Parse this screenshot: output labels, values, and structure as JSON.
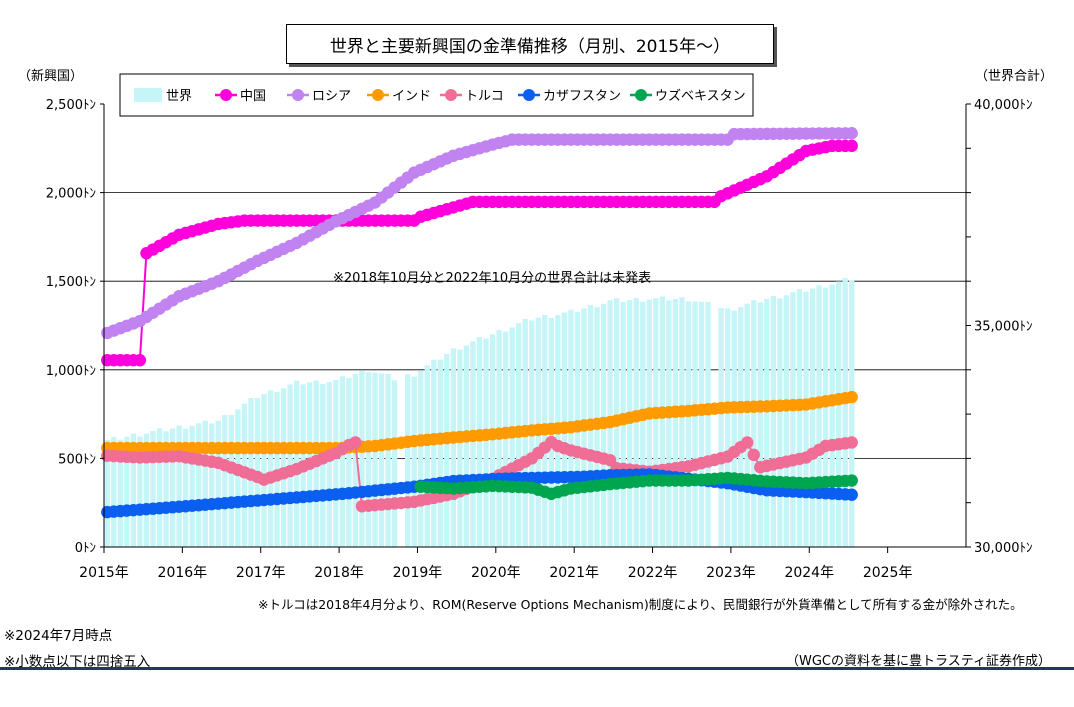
{
  "title": "世界と主要新興国の金準備推移（月別、2015年～）",
  "notes": {
    "turkey": "※トルコは2018年4月分より、ROM(Reserve Options Mechanism)制度により、民間銀行が外貨準備として所有する金が除外された。",
    "as_of": "※2024年7月時点",
    "rounding": "※小数点以下は四捨五入",
    "source": "（WGCの資料を基に豊トラスティ証券作成）",
    "missing": "※2018年10月分と2022年10月分の世界合計は未発表"
  },
  "colors": {
    "world": "#c6f5f8",
    "china": "#ff00dd",
    "russia": "#c083f0",
    "india": "#ff9a00",
    "turkey": "#f06e96",
    "kazakhstan": "#0a5ff0",
    "uzbekistan": "#00a550"
  },
  "chart_data": {
    "type": "line",
    "xlabel": "",
    "ylabel": "（新興国）",
    "y2label": "（世界合計）",
    "ylim": [
      0,
      2500
    ],
    "y2lim": [
      30000,
      40000
    ],
    "yticks": [
      "0ﾄﾝ",
      "500ﾄﾝ",
      "1,000ﾄﾝ",
      "1,500ﾄﾝ",
      "2,000ﾄﾝ",
      "2,500ﾄﾝ"
    ],
    "y2ticks": [
      "30,000ﾄﾝ",
      "35,000ﾄﾝ",
      "40,000ﾄﾝ"
    ],
    "xticks": [
      "2015年",
      "2016年",
      "2017年",
      "2018年",
      "2019年",
      "2020年",
      "2021年",
      "2022年",
      "2023年",
      "2024年",
      "2025年"
    ],
    "xrange": [
      "2015-01",
      "2025-12"
    ],
    "grid": true,
    "legend_position": "top",
    "legend": [
      "世界",
      "中国",
      "ロシア",
      "インド",
      "トルコ",
      "カザフスタン",
      "ウズベキスタン"
    ],
    "world": {
      "name": "世界",
      "type": "bar",
      "axis": "right",
      "start": "2015-01",
      "end": "2024-07",
      "missing": [
        "2018-10",
        "2022-10"
      ],
      "anchors": [
        [
          "2015-01",
          32400
        ],
        [
          "2015-06",
          32550
        ],
        [
          "2015-12",
          32700
        ],
        [
          "2016-06",
          32850
        ],
        [
          "2016-12",
          33400
        ],
        [
          "2017-06",
          33700
        ],
        [
          "2017-12",
          33750
        ],
        [
          "2018-05",
          34000
        ],
        [
          "2018-09",
          33800
        ],
        [
          "2018-12",
          33900
        ],
        [
          "2019-06",
          34450
        ],
        [
          "2019-12",
          34800
        ],
        [
          "2020-06",
          35150
        ],
        [
          "2020-12",
          35300
        ],
        [
          "2021-06",
          35550
        ],
        [
          "2021-12",
          35600
        ],
        [
          "2022-06",
          35600
        ],
        [
          "2022-12",
          35350
        ],
        [
          "2023-06",
          35600
        ],
        [
          "2023-12",
          35800
        ],
        [
          "2024-07",
          36050
        ]
      ]
    },
    "series": [
      {
        "name": "中国",
        "key": "china",
        "start": "2015-01",
        "end": "2024-07",
        "anchors": [
          [
            "2015-01",
            1054
          ],
          [
            "2015-06",
            1054
          ],
          [
            "2015-07",
            1658
          ],
          [
            "2015-12",
            1762
          ],
          [
            "2016-06",
            1823
          ],
          [
            "2016-10",
            1842
          ],
          [
            "2018-12",
            1842
          ],
          [
            "2019-01",
            1864
          ],
          [
            "2019-09",
            1948
          ],
          [
            "2022-10",
            1948
          ],
          [
            "2022-11",
            1980
          ],
          [
            "2023-06",
            2092
          ],
          [
            "2023-12",
            2235
          ],
          [
            "2024-04",
            2264
          ],
          [
            "2024-07",
            2264
          ]
        ]
      },
      {
        "name": "ロシア",
        "key": "russia",
        "start": "2015-01",
        "end": "2024-07",
        "anchors": [
          [
            "2015-01",
            1208
          ],
          [
            "2015-06",
            1275
          ],
          [
            "2015-12",
            1415
          ],
          [
            "2016-06",
            1500
          ],
          [
            "2016-12",
            1615
          ],
          [
            "2017-06",
            1716
          ],
          [
            "2017-12",
            1838
          ],
          [
            "2018-06",
            1944
          ],
          [
            "2018-12",
            2113
          ],
          [
            "2019-06",
            2208
          ],
          [
            "2019-12",
            2271
          ],
          [
            "2020-03",
            2299
          ],
          [
            "2022-12",
            2299
          ],
          [
            "2023-01",
            2330
          ],
          [
            "2024-07",
            2335
          ]
        ]
      },
      {
        "name": "インド",
        "key": "india",
        "start": "2015-01",
        "end": "2024-07",
        "anchors": [
          [
            "2015-01",
            558
          ],
          [
            "2017-12",
            558
          ],
          [
            "2018-06",
            570
          ],
          [
            "2018-12",
            598
          ],
          [
            "2019-06",
            618
          ],
          [
            "2019-12",
            636
          ],
          [
            "2020-06",
            658
          ],
          [
            "2020-12",
            676
          ],
          [
            "2021-06",
            705
          ],
          [
            "2021-12",
            754
          ],
          [
            "2022-06",
            768
          ],
          [
            "2022-12",
            787
          ],
          [
            "2023-06",
            794
          ],
          [
            "2023-12",
            804
          ],
          [
            "2024-07",
            846
          ]
        ]
      },
      {
        "name": "トルコ",
        "key": "turkey",
        "start": "2015-01",
        "end": "2024-07",
        "anchors": [
          [
            "2015-01",
            515
          ],
          [
            "2015-06",
            505
          ],
          [
            "2015-12",
            512
          ],
          [
            "2016-06",
            475
          ],
          [
            "2016-12",
            395
          ],
          [
            "2017-01",
            380
          ],
          [
            "2017-06",
            440
          ],
          [
            "2017-12",
            530
          ],
          [
            "2018-02",
            575
          ],
          [
            "2018-03",
            590
          ],
          [
            "2018-04",
            230
          ],
          [
            "2018-12",
            255
          ],
          [
            "2019-06",
            300
          ],
          [
            "2019-12",
            385
          ],
          [
            "2020-06",
            500
          ],
          [
            "2020-09",
            592
          ],
          [
            "2020-10",
            570
          ],
          [
            "2020-12",
            545
          ],
          [
            "2021-06",
            490
          ],
          [
            "2021-07",
            445
          ],
          [
            "2021-12",
            425
          ],
          [
            "2022-06",
            455
          ],
          [
            "2022-12",
            510
          ],
          [
            "2023-03",
            590
          ],
          [
            "2023-05",
            450
          ],
          [
            "2023-12",
            505
          ],
          [
            "2024-03",
            570
          ],
          [
            "2024-07",
            590
          ]
        ]
      },
      {
        "name": "カザフスタン",
        "key": "kazakhstan",
        "start": "2015-01",
        "end": "2024-07",
        "anchors": [
          [
            "2015-01",
            197
          ],
          [
            "2016-01",
            230
          ],
          [
            "2017-01",
            265
          ],
          [
            "2018-01",
            300
          ],
          [
            "2018-12",
            340
          ],
          [
            "2019-06",
            372
          ],
          [
            "2020-01",
            385
          ],
          [
            "2020-06",
            390
          ],
          [
            "2021-01",
            395
          ],
          [
            "2021-06",
            405
          ],
          [
            "2021-12",
            410
          ],
          [
            "2022-06",
            385
          ],
          [
            "2022-12",
            360
          ],
          [
            "2023-06",
            320
          ],
          [
            "2023-12",
            310
          ],
          [
            "2024-07",
            295
          ]
        ]
      },
      {
        "name": "ウズベキスタン",
        "key": "uzbekistan",
        "start": "2019-01",
        "end": "2024-07",
        "anchors": [
          [
            "2019-01",
            340
          ],
          [
            "2019-06",
            330
          ],
          [
            "2019-12",
            345
          ],
          [
            "2020-06",
            335
          ],
          [
            "2020-09",
            300
          ],
          [
            "2020-12",
            330
          ],
          [
            "2021-06",
            355
          ],
          [
            "2021-12",
            375
          ],
          [
            "2022-06",
            375
          ],
          [
            "2022-12",
            390
          ],
          [
            "2023-06",
            370
          ],
          [
            "2023-12",
            360
          ],
          [
            "2024-07",
            375
          ]
        ]
      }
    ]
  }
}
